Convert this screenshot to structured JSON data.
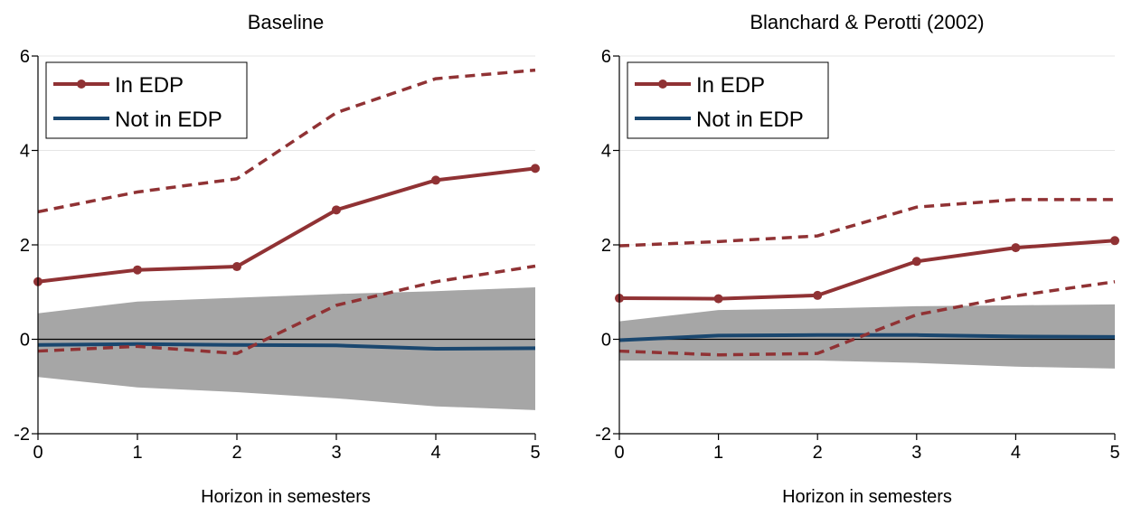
{
  "chart_data": [
    {
      "type": "line",
      "title": "Baseline",
      "xlabel": "Horizon in semesters",
      "ylabel": "",
      "x": [
        0,
        1,
        2,
        3,
        4,
        5
      ],
      "xlim": [
        0,
        5
      ],
      "ylim": [
        -2,
        6
      ],
      "xticks": [
        0,
        1,
        2,
        3,
        4,
        5
      ],
      "yticks": [
        -2,
        0,
        2,
        4,
        6
      ],
      "grid": true,
      "zero_line": true,
      "legend": {
        "position": "top-left",
        "entries": [
          "In EDP",
          "Not in EDP"
        ]
      },
      "series": [
        {
          "name": "In EDP",
          "color": "#903234",
          "style": "solid",
          "markers": true,
          "values": [
            1.22,
            1.47,
            1.54,
            2.74,
            3.37,
            3.62
          ]
        },
        {
          "name": "",
          "color": "#903234",
          "style": "dashed",
          "role": "upper band, In EDP",
          "values": [
            2.7,
            3.12,
            3.4,
            4.8,
            5.52,
            5.7
          ]
        },
        {
          "name": "",
          "color": "#903234",
          "style": "dashed",
          "role": "lower band, In EDP",
          "values": [
            -0.25,
            -0.15,
            -0.3,
            0.72,
            1.22,
            1.55
          ]
        },
        {
          "name": "Not in EDP",
          "color": "#1a476f",
          "style": "solid",
          "markers": false,
          "values": [
            -0.12,
            -0.1,
            -0.12,
            -0.13,
            -0.2,
            -0.19
          ]
        }
      ],
      "band": {
        "color": "#a6a6a6",
        "lower": [
          -0.8,
          -1.02,
          -1.12,
          -1.25,
          -1.42,
          -1.5
        ],
        "upper": [
          0.55,
          0.8,
          0.88,
          0.96,
          1.02,
          1.1
        ]
      }
    },
    {
      "type": "line",
      "title": "Blanchard & Perotti (2002)",
      "xlabel": "Horizon in semesters",
      "ylabel": "",
      "x": [
        0,
        1,
        2,
        3,
        4,
        5
      ],
      "xlim": [
        0,
        5
      ],
      "ylim": [
        -2,
        6
      ],
      "xticks": [
        0,
        1,
        2,
        3,
        4,
        5
      ],
      "yticks": [
        -2,
        0,
        2,
        4,
        6
      ],
      "grid": true,
      "zero_line": true,
      "legend": {
        "position": "top-left",
        "entries": [
          "In EDP",
          "Not in EDP"
        ]
      },
      "series": [
        {
          "name": "In EDP",
          "color": "#903234",
          "style": "solid",
          "markers": true,
          "values": [
            0.87,
            0.86,
            0.93,
            1.65,
            1.94,
            2.09
          ]
        },
        {
          "name": "",
          "color": "#903234",
          "style": "dashed",
          "role": "upper band, In EDP",
          "values": [
            1.98,
            2.07,
            2.19,
            2.8,
            2.96,
            2.96
          ]
        },
        {
          "name": "",
          "color": "#903234",
          "style": "dashed",
          "role": "lower band, In EDP",
          "values": [
            -0.25,
            -0.33,
            -0.3,
            0.52,
            0.92,
            1.22
          ]
        },
        {
          "name": "Not in EDP",
          "color": "#1a476f",
          "style": "solid",
          "markers": false,
          "values": [
            -0.02,
            0.08,
            0.09,
            0.09,
            0.06,
            0.05
          ]
        }
      ],
      "band": {
        "color": "#a6a6a6",
        "lower": [
          -0.45,
          -0.45,
          -0.45,
          -0.5,
          -0.58,
          -0.62
        ],
        "upper": [
          0.38,
          0.62,
          0.65,
          0.7,
          0.72,
          0.74
        ]
      }
    }
  ]
}
